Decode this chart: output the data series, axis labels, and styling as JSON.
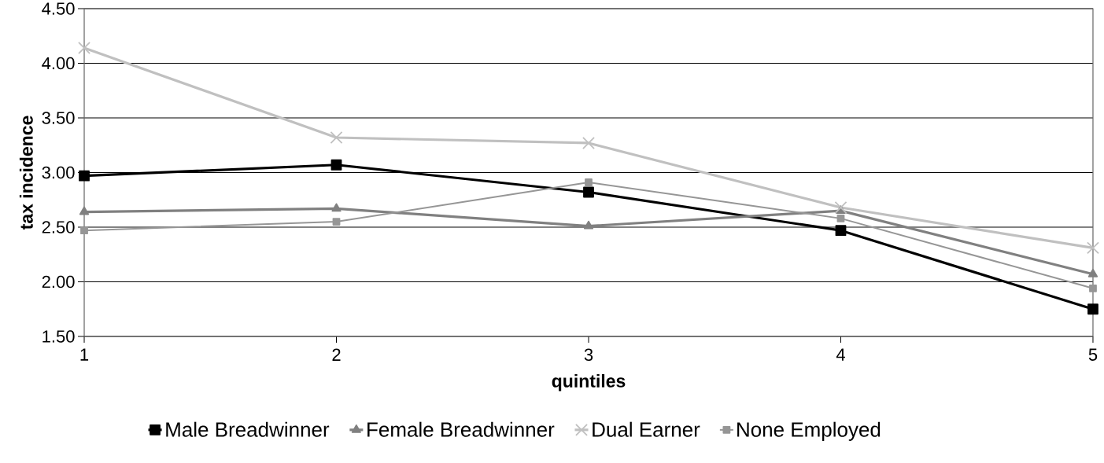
{
  "chart_data": {
    "type": "line",
    "xlabel": "quintiles",
    "ylabel": "tax incidence",
    "x": [
      1,
      2,
      3,
      4,
      5
    ],
    "xlim": [
      1,
      5
    ],
    "xticks": [
      1,
      2,
      3,
      4,
      5
    ],
    "ylim": [
      1.5,
      4.5
    ],
    "yticks": [
      {
        "value": 1.5,
        "label": "1.50"
      },
      {
        "value": 2.0,
        "label": "2.00"
      },
      {
        "value": 2.5,
        "label": "2.50"
      },
      {
        "value": 3.0,
        "label": "3.00"
      },
      {
        "value": 3.5,
        "label": "3.50"
      },
      {
        "value": 4.0,
        "label": "4.00"
      },
      {
        "value": 4.5,
        "label": "4.50"
      }
    ],
    "grid": "y",
    "legend": "bottom",
    "line_style": "solid",
    "series": [
      {
        "name": "Male Breadwinner",
        "color": "#000000",
        "marker": "square",
        "values": [
          2.97,
          3.07,
          2.82,
          2.47,
          1.75
        ]
      },
      {
        "name": "Female Breadwinner",
        "color": "#808080",
        "marker": "triangle",
        "values": [
          2.64,
          2.67,
          2.51,
          2.65,
          2.07
        ]
      },
      {
        "name": "Dual Earner",
        "color": "#c0c0c0",
        "marker": "cross",
        "values": [
          4.14,
          3.32,
          3.27,
          2.68,
          2.31
        ]
      },
      {
        "name": "None Employed",
        "color": "#969696",
        "marker": "square",
        "values": [
          2.47,
          2.55,
          2.91,
          2.58,
          1.94
        ]
      }
    ]
  }
}
